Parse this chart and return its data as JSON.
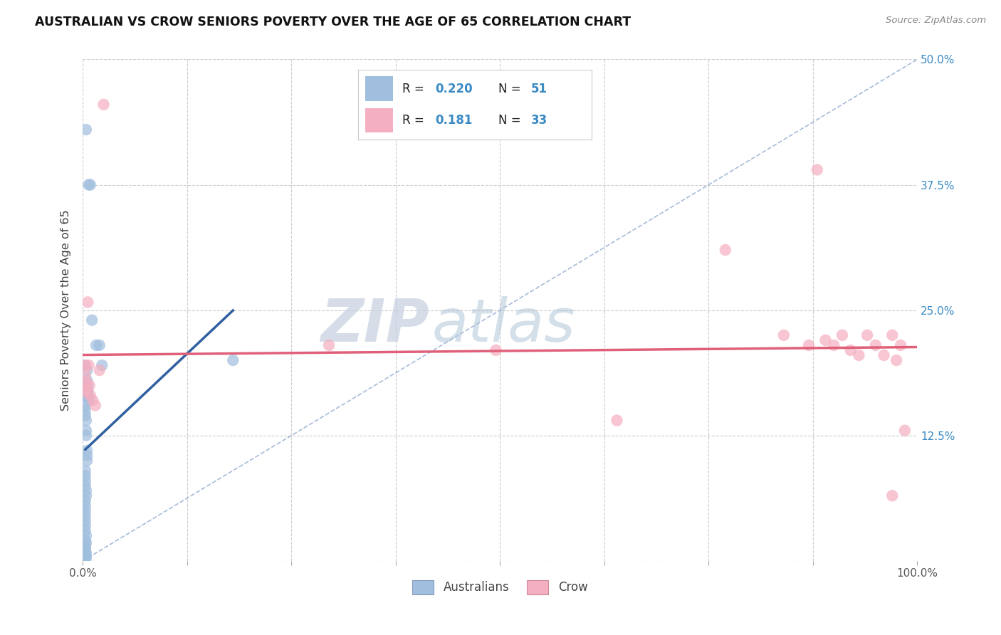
{
  "title": "AUSTRALIAN VS CROW SENIORS POVERTY OVER THE AGE OF 65 CORRELATION CHART",
  "source": "Source: ZipAtlas.com",
  "ylabel": "Seniors Poverty Over the Age of 65",
  "xlim": [
    0.0,
    1.0
  ],
  "ylim": [
    0.0,
    0.5
  ],
  "xticks": [
    0.0,
    0.125,
    0.25,
    0.375,
    0.5,
    0.625,
    0.75,
    0.875,
    1.0
  ],
  "xticklabels": [
    "0.0%",
    "",
    "",
    "",
    "",
    "",
    "",
    "",
    "100.0%"
  ],
  "ytick_positions": [
    0.0,
    0.125,
    0.25,
    0.375,
    0.5
  ],
  "yticklabels_right": [
    "",
    "12.5%",
    "25.0%",
    "37.5%",
    "50.0%"
  ],
  "color_australian": "#a0bede",
  "color_crow": "#f4afc0",
  "color_line_australian": "#3060a0",
  "color_line_crow": "#e0607a",
  "color_dashed": "#90aad0",
  "R_australian": 0.22,
  "N_australian": 51,
  "R_crow": 0.181,
  "N_crow": 33,
  "legend_label_australian": "Australians",
  "legend_label_crow": "Crow",
  "watermark_zip": "ZIP",
  "watermark_atlas": "atlas",
  "australians_x": [
    0.004,
    0.007,
    0.009,
    0.011,
    0.016,
    0.02,
    0.023,
    0.003,
    0.005,
    0.005,
    0.005,
    0.005,
    0.006,
    0.006,
    0.007,
    0.007,
    0.003,
    0.003,
    0.003,
    0.004,
    0.004,
    0.004,
    0.005,
    0.005,
    0.005,
    0.003,
    0.003,
    0.003,
    0.003,
    0.004,
    0.004,
    0.003,
    0.003,
    0.003,
    0.003,
    0.003,
    0.003,
    0.003,
    0.004,
    0.003,
    0.004,
    0.003,
    0.003,
    0.003,
    0.004,
    0.003,
    0.003,
    0.004,
    0.003,
    0.18,
    0.003
  ],
  "australians_y": [
    0.43,
    0.375,
    0.375,
    0.24,
    0.215,
    0.215,
    0.195,
    0.195,
    0.19,
    0.18,
    0.175,
    0.175,
    0.17,
    0.165,
    0.163,
    0.16,
    0.155,
    0.15,
    0.145,
    0.14,
    0.13,
    0.125,
    0.11,
    0.105,
    0.1,
    0.09,
    0.085,
    0.08,
    0.075,
    0.07,
    0.065,
    0.06,
    0.055,
    0.05,
    0.045,
    0.04,
    0.035,
    0.03,
    0.025,
    0.02,
    0.018,
    0.015,
    0.013,
    0.01,
    0.008,
    0.006,
    0.004,
    0.003,
    0.002,
    0.2,
    0.003
  ],
  "crow_x": [
    0.003,
    0.003,
    0.004,
    0.004,
    0.005,
    0.006,
    0.007,
    0.008,
    0.009,
    0.012,
    0.015,
    0.02,
    0.025,
    0.295,
    0.495,
    0.64,
    0.77,
    0.84,
    0.87,
    0.88,
    0.89,
    0.9,
    0.91,
    0.92,
    0.93,
    0.94,
    0.95,
    0.96,
    0.97,
    0.975,
    0.98,
    0.985,
    0.97
  ],
  "crow_y": [
    0.195,
    0.185,
    0.178,
    0.172,
    0.168,
    0.258,
    0.195,
    0.175,
    0.165,
    0.16,
    0.155,
    0.19,
    0.455,
    0.215,
    0.21,
    0.14,
    0.31,
    0.225,
    0.215,
    0.39,
    0.22,
    0.215,
    0.225,
    0.21,
    0.205,
    0.225,
    0.215,
    0.205,
    0.225,
    0.2,
    0.215,
    0.13,
    0.065
  ]
}
